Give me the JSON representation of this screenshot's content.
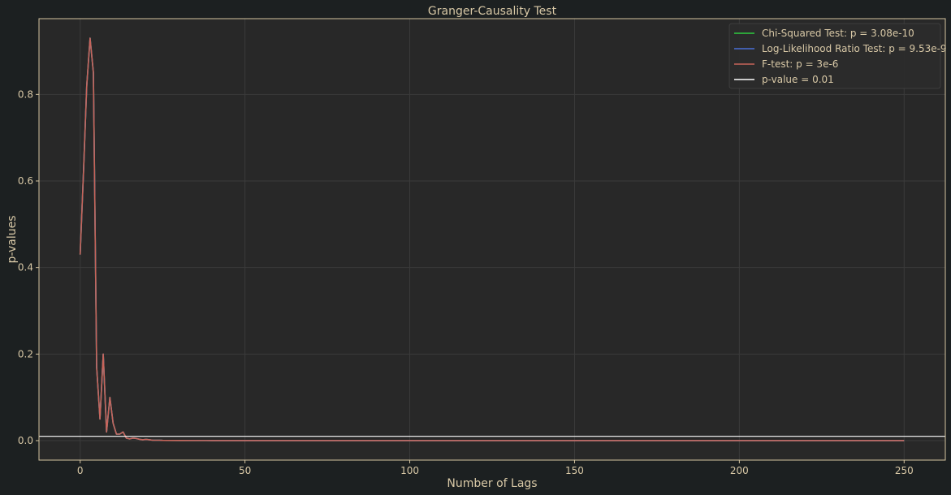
{
  "chart_data": {
    "type": "line",
    "title": "Granger-Causality Test",
    "xlabel": "Number of Lags",
    "ylabel": "p-values",
    "xlim": [
      -12.5,
      262.5
    ],
    "ylim": [
      -0.045,
      0.975
    ],
    "xticks": [
      0,
      50,
      100,
      150,
      200,
      250
    ],
    "xtick_labels": [
      "0",
      "50",
      "100",
      "150",
      "200",
      "250"
    ],
    "yticks": [
      0.0,
      0.2,
      0.4,
      0.6,
      0.8
    ],
    "ytick_labels": [
      "0.0",
      "0.2",
      "0.4",
      "0.6",
      "0.8"
    ],
    "grid": true,
    "legend_position": "top-right",
    "colors": {
      "background": "#1c2021",
      "plot_background": "#282828",
      "grid": "#3b3b3b",
      "axis_frame": "#d4c4a0",
      "text": "#d8c8a6",
      "chi_squared": "#2ecc40",
      "log_likelihood": "#4a6fd8",
      "f_test": "#c8645a",
      "threshold": "#ffffff"
    },
    "series": [
      {
        "name": "Chi-Squared Test: p = 3.08e-10",
        "color": "#2ecc40",
        "x": [
          0,
          1,
          2,
          3,
          4,
          5,
          6,
          7,
          8,
          9,
          10,
          11,
          12,
          13,
          14,
          15,
          16,
          17,
          18,
          19,
          20,
          21,
          22,
          23,
          24,
          25,
          30,
          40,
          60,
          80,
          100,
          125,
          150,
          175,
          200,
          225,
          250
        ],
        "y": [
          0.43,
          0.62,
          0.82,
          0.93,
          0.85,
          0.17,
          0.05,
          0.2,
          0.02,
          0.1,
          0.04,
          0.015,
          0.015,
          0.02,
          0.006,
          0.004,
          0.006,
          0.005,
          0.003,
          0.002,
          0.003,
          0.002,
          0.001,
          0.001,
          0.001,
          0.0005,
          0.0003,
          0.0002,
          0.0001,
          0.0001,
          0.0001,
          0.0001,
          0.0001,
          0.0001,
          0.0001,
          0.0001,
          0.0001
        ]
      },
      {
        "name": "Log-Likelihood Ratio Test: p = 9.53e-9",
        "color": "#4a6fd8",
        "x": [
          0,
          1,
          2,
          3,
          4,
          5,
          6,
          7,
          8,
          9,
          10,
          11,
          12,
          13,
          14,
          15,
          16,
          17,
          18,
          19,
          20,
          21,
          22,
          23,
          24,
          25,
          30,
          40,
          60,
          80,
          100,
          125,
          150,
          175,
          200,
          225,
          250
        ],
        "y": [
          0.43,
          0.62,
          0.82,
          0.93,
          0.85,
          0.17,
          0.05,
          0.2,
          0.02,
          0.1,
          0.04,
          0.015,
          0.015,
          0.02,
          0.006,
          0.004,
          0.006,
          0.005,
          0.003,
          0.002,
          0.003,
          0.002,
          0.001,
          0.001,
          0.001,
          0.0005,
          0.0003,
          0.0002,
          0.0001,
          0.0001,
          0.0001,
          0.0001,
          0.0001,
          0.0001,
          0.0001,
          0.0001,
          0.0001
        ]
      },
      {
        "name": "F-test: p = 3e-6",
        "color": "#c8645a",
        "x": [
          0,
          1,
          2,
          3,
          4,
          5,
          6,
          7,
          8,
          9,
          10,
          11,
          12,
          13,
          14,
          15,
          16,
          17,
          18,
          19,
          20,
          21,
          22,
          23,
          24,
          25,
          30,
          40,
          60,
          80,
          100,
          125,
          150,
          175,
          200,
          225,
          250
        ],
        "y": [
          0.43,
          0.62,
          0.82,
          0.93,
          0.85,
          0.17,
          0.05,
          0.2,
          0.02,
          0.1,
          0.04,
          0.015,
          0.015,
          0.02,
          0.006,
          0.004,
          0.006,
          0.005,
          0.003,
          0.002,
          0.003,
          0.002,
          0.001,
          0.001,
          0.001,
          0.0005,
          0.0003,
          0.0002,
          0.0001,
          0.0001,
          0.0001,
          0.0001,
          0.0001,
          0.0001,
          0.0001,
          0.0001,
          0.0001
        ]
      }
    ],
    "threshold": {
      "name": "p-value = 0.01",
      "value": 0.01,
      "color": "#ffffff"
    }
  }
}
